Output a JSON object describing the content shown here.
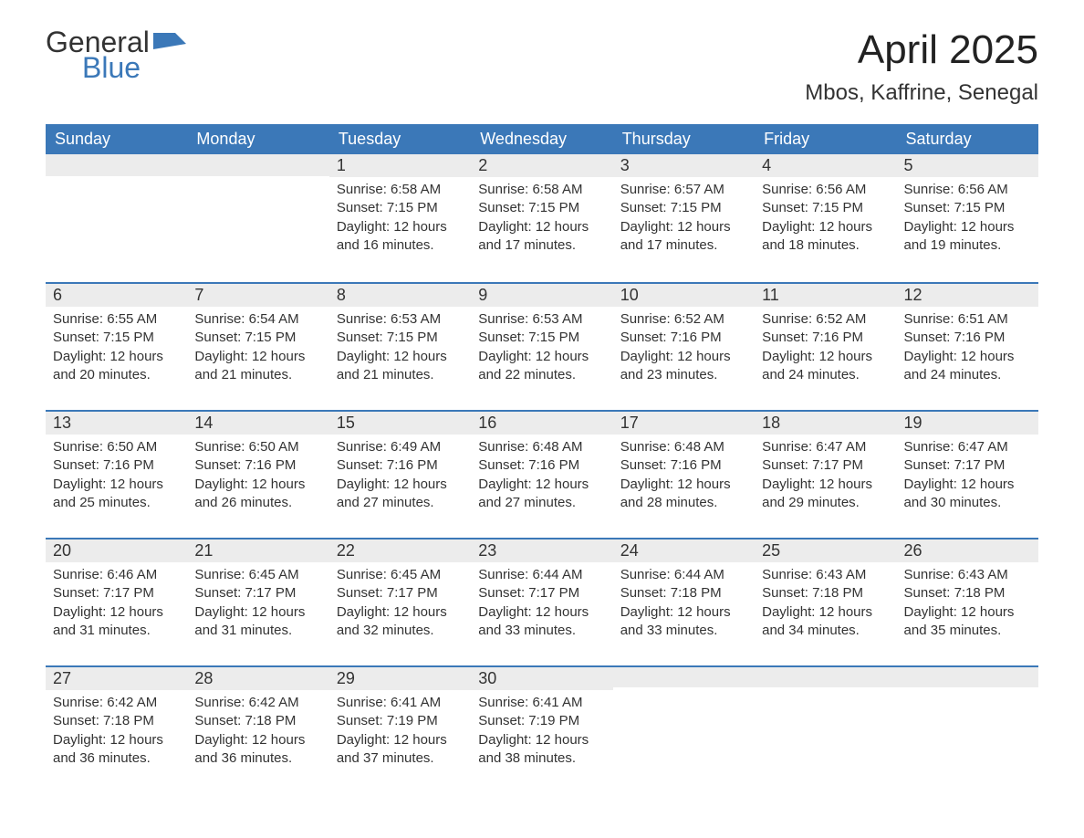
{
  "logo": {
    "general": "General",
    "blue": "Blue",
    "icon_fill": "#3b78b8"
  },
  "title": "April 2025",
  "location": "Mbos, Kaffrine, Senegal",
  "colors": {
    "header_bg": "#3b78b8",
    "header_text": "#ffffff",
    "daynum_bg": "#ececec",
    "row_sep": "#3b78b8",
    "text": "#333333",
    "page_bg": "#ffffff"
  },
  "day_names": [
    "Sunday",
    "Monday",
    "Tuesday",
    "Wednesday",
    "Thursday",
    "Friday",
    "Saturday"
  ],
  "weeks": [
    [
      {
        "n": "",
        "sr": "",
        "ss": "",
        "dl": ""
      },
      {
        "n": "",
        "sr": "",
        "ss": "",
        "dl": ""
      },
      {
        "n": "1",
        "sr": "Sunrise: 6:58 AM",
        "ss": "Sunset: 7:15 PM",
        "dl": "Daylight: 12 hours and 16 minutes."
      },
      {
        "n": "2",
        "sr": "Sunrise: 6:58 AM",
        "ss": "Sunset: 7:15 PM",
        "dl": "Daylight: 12 hours and 17 minutes."
      },
      {
        "n": "3",
        "sr": "Sunrise: 6:57 AM",
        "ss": "Sunset: 7:15 PM",
        "dl": "Daylight: 12 hours and 17 minutes."
      },
      {
        "n": "4",
        "sr": "Sunrise: 6:56 AM",
        "ss": "Sunset: 7:15 PM",
        "dl": "Daylight: 12 hours and 18 minutes."
      },
      {
        "n": "5",
        "sr": "Sunrise: 6:56 AM",
        "ss": "Sunset: 7:15 PM",
        "dl": "Daylight: 12 hours and 19 minutes."
      }
    ],
    [
      {
        "n": "6",
        "sr": "Sunrise: 6:55 AM",
        "ss": "Sunset: 7:15 PM",
        "dl": "Daylight: 12 hours and 20 minutes."
      },
      {
        "n": "7",
        "sr": "Sunrise: 6:54 AM",
        "ss": "Sunset: 7:15 PM",
        "dl": "Daylight: 12 hours and 21 minutes."
      },
      {
        "n": "8",
        "sr": "Sunrise: 6:53 AM",
        "ss": "Sunset: 7:15 PM",
        "dl": "Daylight: 12 hours and 21 minutes."
      },
      {
        "n": "9",
        "sr": "Sunrise: 6:53 AM",
        "ss": "Sunset: 7:15 PM",
        "dl": "Daylight: 12 hours and 22 minutes."
      },
      {
        "n": "10",
        "sr": "Sunrise: 6:52 AM",
        "ss": "Sunset: 7:16 PM",
        "dl": "Daylight: 12 hours and 23 minutes."
      },
      {
        "n": "11",
        "sr": "Sunrise: 6:52 AM",
        "ss": "Sunset: 7:16 PM",
        "dl": "Daylight: 12 hours and 24 minutes."
      },
      {
        "n": "12",
        "sr": "Sunrise: 6:51 AM",
        "ss": "Sunset: 7:16 PM",
        "dl": "Daylight: 12 hours and 24 minutes."
      }
    ],
    [
      {
        "n": "13",
        "sr": "Sunrise: 6:50 AM",
        "ss": "Sunset: 7:16 PM",
        "dl": "Daylight: 12 hours and 25 minutes."
      },
      {
        "n": "14",
        "sr": "Sunrise: 6:50 AM",
        "ss": "Sunset: 7:16 PM",
        "dl": "Daylight: 12 hours and 26 minutes."
      },
      {
        "n": "15",
        "sr": "Sunrise: 6:49 AM",
        "ss": "Sunset: 7:16 PM",
        "dl": "Daylight: 12 hours and 27 minutes."
      },
      {
        "n": "16",
        "sr": "Sunrise: 6:48 AM",
        "ss": "Sunset: 7:16 PM",
        "dl": "Daylight: 12 hours and 27 minutes."
      },
      {
        "n": "17",
        "sr": "Sunrise: 6:48 AM",
        "ss": "Sunset: 7:16 PM",
        "dl": "Daylight: 12 hours and 28 minutes."
      },
      {
        "n": "18",
        "sr": "Sunrise: 6:47 AM",
        "ss": "Sunset: 7:17 PM",
        "dl": "Daylight: 12 hours and 29 minutes."
      },
      {
        "n": "19",
        "sr": "Sunrise: 6:47 AM",
        "ss": "Sunset: 7:17 PM",
        "dl": "Daylight: 12 hours and 30 minutes."
      }
    ],
    [
      {
        "n": "20",
        "sr": "Sunrise: 6:46 AM",
        "ss": "Sunset: 7:17 PM",
        "dl": "Daylight: 12 hours and 31 minutes."
      },
      {
        "n": "21",
        "sr": "Sunrise: 6:45 AM",
        "ss": "Sunset: 7:17 PM",
        "dl": "Daylight: 12 hours and 31 minutes."
      },
      {
        "n": "22",
        "sr": "Sunrise: 6:45 AM",
        "ss": "Sunset: 7:17 PM",
        "dl": "Daylight: 12 hours and 32 minutes."
      },
      {
        "n": "23",
        "sr": "Sunrise: 6:44 AM",
        "ss": "Sunset: 7:17 PM",
        "dl": "Daylight: 12 hours and 33 minutes."
      },
      {
        "n": "24",
        "sr": "Sunrise: 6:44 AM",
        "ss": "Sunset: 7:18 PM",
        "dl": "Daylight: 12 hours and 33 minutes."
      },
      {
        "n": "25",
        "sr": "Sunrise: 6:43 AM",
        "ss": "Sunset: 7:18 PM",
        "dl": "Daylight: 12 hours and 34 minutes."
      },
      {
        "n": "26",
        "sr": "Sunrise: 6:43 AM",
        "ss": "Sunset: 7:18 PM",
        "dl": "Daylight: 12 hours and 35 minutes."
      }
    ],
    [
      {
        "n": "27",
        "sr": "Sunrise: 6:42 AM",
        "ss": "Sunset: 7:18 PM",
        "dl": "Daylight: 12 hours and 36 minutes."
      },
      {
        "n": "28",
        "sr": "Sunrise: 6:42 AM",
        "ss": "Sunset: 7:18 PM",
        "dl": "Daylight: 12 hours and 36 minutes."
      },
      {
        "n": "29",
        "sr": "Sunrise: 6:41 AM",
        "ss": "Sunset: 7:19 PM",
        "dl": "Daylight: 12 hours and 37 minutes."
      },
      {
        "n": "30",
        "sr": "Sunrise: 6:41 AM",
        "ss": "Sunset: 7:19 PM",
        "dl": "Daylight: 12 hours and 38 minutes."
      },
      {
        "n": "",
        "sr": "",
        "ss": "",
        "dl": ""
      },
      {
        "n": "",
        "sr": "",
        "ss": "",
        "dl": ""
      },
      {
        "n": "",
        "sr": "",
        "ss": "",
        "dl": ""
      }
    ]
  ]
}
